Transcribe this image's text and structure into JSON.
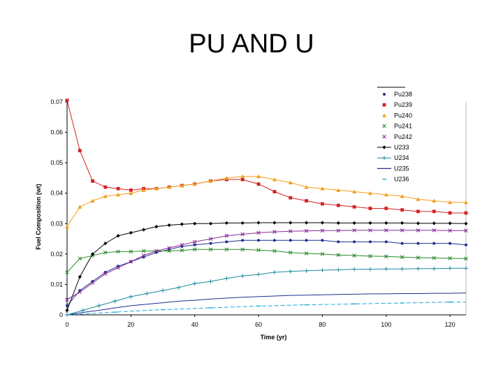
{
  "slide": {
    "title": "PU AND U"
  },
  "chart_data": {
    "type": "line",
    "title": "",
    "xlabel": "Time (yr)",
    "ylabel": "Fuel Composition (wt)",
    "xlim": [
      0,
      125
    ],
    "ylim": [
      0,
      0.07
    ],
    "xticks": [
      "0",
      "20",
      "40",
      "60",
      "80",
      "100",
      "120"
    ],
    "yticks": [
      "0",
      "0.01",
      "0.02",
      "0.03",
      "0.04",
      "0.05",
      "0.06",
      "0.07"
    ],
    "grid": false,
    "legend_position": "top-right",
    "series": [
      {
        "name": "Pu238",
        "color": "#1f2f8f",
        "marker": "circle",
        "x": [
          0,
          4,
          8,
          12,
          16,
          20,
          24,
          28,
          32,
          36,
          40,
          45,
          50,
          55,
          60,
          65,
          70,
          75,
          80,
          85,
          90,
          95,
          100,
          105,
          110,
          115,
          120,
          125
        ],
        "y": [
          0.003,
          0.008,
          0.011,
          0.014,
          0.016,
          0.0175,
          0.019,
          0.0205,
          0.0215,
          0.0225,
          0.023,
          0.0235,
          0.024,
          0.0245,
          0.0245,
          0.0245,
          0.0245,
          0.0245,
          0.0245,
          0.024,
          0.024,
          0.024,
          0.024,
          0.0235,
          0.0235,
          0.0235,
          0.0235,
          0.023
        ]
      },
      {
        "name": "Pu239",
        "color": "#d42020",
        "marker": "square",
        "x": [
          0,
          4,
          8,
          12,
          16,
          20,
          24,
          28,
          32,
          36,
          40,
          45,
          50,
          55,
          60,
          65,
          70,
          75,
          80,
          85,
          90,
          95,
          100,
          105,
          110,
          115,
          120,
          125
        ],
        "y": [
          0.0705,
          0.054,
          0.044,
          0.042,
          0.0415,
          0.041,
          0.0415,
          0.0415,
          0.042,
          0.0425,
          0.043,
          0.044,
          0.0445,
          0.0445,
          0.043,
          0.0405,
          0.0385,
          0.0375,
          0.0365,
          0.036,
          0.0355,
          0.035,
          0.035,
          0.0345,
          0.034,
          0.034,
          0.0335,
          0.0335
        ]
      },
      {
        "name": "Pu240",
        "color": "#f0a020",
        "marker": "triangle",
        "x": [
          0,
          4,
          8,
          12,
          16,
          20,
          24,
          28,
          32,
          36,
          40,
          45,
          50,
          55,
          60,
          65,
          70,
          75,
          80,
          85,
          90,
          95,
          100,
          105,
          110,
          115,
          120,
          125
        ],
        "y": [
          0.029,
          0.0355,
          0.0375,
          0.039,
          0.0395,
          0.04,
          0.041,
          0.0415,
          0.042,
          0.0425,
          0.043,
          0.044,
          0.045,
          0.0455,
          0.0455,
          0.0445,
          0.0435,
          0.042,
          0.0415,
          0.041,
          0.0405,
          0.04,
          0.0395,
          0.039,
          0.038,
          0.0375,
          0.037,
          0.037
        ]
      },
      {
        "name": "Pu241",
        "color": "#2a8a2a",
        "marker": "x",
        "x": [
          0,
          4,
          8,
          12,
          16,
          20,
          24,
          28,
          32,
          36,
          40,
          45,
          50,
          55,
          60,
          65,
          70,
          75,
          80,
          85,
          90,
          95,
          100,
          105,
          110,
          115,
          120,
          125
        ],
        "y": [
          0.014,
          0.0185,
          0.0195,
          0.0205,
          0.0208,
          0.0208,
          0.021,
          0.021,
          0.021,
          0.0212,
          0.0215,
          0.0215,
          0.0215,
          0.0215,
          0.0213,
          0.021,
          0.0205,
          0.0202,
          0.02,
          0.0197,
          0.0195,
          0.0193,
          0.0192,
          0.019,
          0.0188,
          0.0187,
          0.0186,
          0.0185
        ]
      },
      {
        "name": "Pu242",
        "color": "#8a2a9a",
        "marker": "x",
        "x": [
          0,
          4,
          8,
          12,
          16,
          20,
          24,
          28,
          32,
          36,
          40,
          45,
          50,
          55,
          60,
          65,
          70,
          75,
          80,
          85,
          90,
          95,
          100,
          105,
          110,
          115,
          120,
          125
        ],
        "y": [
          0.005,
          0.0075,
          0.0105,
          0.0135,
          0.0155,
          0.0175,
          0.0195,
          0.021,
          0.022,
          0.023,
          0.024,
          0.025,
          0.026,
          0.0265,
          0.027,
          0.0273,
          0.0275,
          0.0276,
          0.0277,
          0.0277,
          0.0278,
          0.0278,
          0.0278,
          0.0278,
          0.0278,
          0.0278,
          0.0277,
          0.0277
        ]
      },
      {
        "name": "U233",
        "color": "#000000",
        "marker": "diamond",
        "x": [
          0,
          4,
          8,
          12,
          16,
          20,
          24,
          28,
          32,
          36,
          40,
          45,
          50,
          55,
          60,
          65,
          70,
          75,
          80,
          85,
          90,
          95,
          100,
          105,
          110,
          115,
          120,
          125
        ],
        "y": [
          0.0015,
          0.0125,
          0.02,
          0.0235,
          0.026,
          0.027,
          0.028,
          0.029,
          0.0295,
          0.0298,
          0.03,
          0.03,
          0.0302,
          0.0302,
          0.0303,
          0.0303,
          0.0303,
          0.0303,
          0.0303,
          0.0302,
          0.0302,
          0.0302,
          0.0302,
          0.0302,
          0.0301,
          0.0301,
          0.0301,
          0.03
        ]
      },
      {
        "name": "U234",
        "color": "#1f8a9a",
        "marker": "plus",
        "x": [
          0,
          5,
          10,
          15,
          20,
          25,
          30,
          35,
          40,
          45,
          50,
          55,
          60,
          65,
          70,
          75,
          80,
          85,
          90,
          95,
          100,
          105,
          110,
          115,
          120,
          125
        ],
        "y": [
          0,
          0.0015,
          0.003,
          0.0045,
          0.006,
          0.007,
          0.008,
          0.009,
          0.0103,
          0.011,
          0.012,
          0.0128,
          0.0133,
          0.014,
          0.0143,
          0.0145,
          0.0147,
          0.0148,
          0.015,
          0.015,
          0.0151,
          0.0151,
          0.0152,
          0.0152,
          0.0153,
          0.0153
        ]
      },
      {
        "name": "U235",
        "color": "#1f2f8f",
        "marker": "none",
        "x": [
          0,
          5,
          10,
          15,
          20,
          25,
          30,
          35,
          40,
          45,
          50,
          55,
          60,
          65,
          70,
          75,
          80,
          85,
          90,
          95,
          100,
          105,
          110,
          115,
          120,
          125
        ],
        "y": [
          0,
          0.0008,
          0.0015,
          0.0023,
          0.003,
          0.0035,
          0.004,
          0.0045,
          0.0048,
          0.0052,
          0.0055,
          0.0058,
          0.006,
          0.0062,
          0.0064,
          0.0065,
          0.0066,
          0.0067,
          0.0068,
          0.0069,
          0.0069,
          0.007,
          0.007,
          0.0071,
          0.0071,
          0.0072
        ]
      },
      {
        "name": "U236",
        "color": "#20a8d8",
        "marker": "dash",
        "x": [
          0,
          5,
          10,
          15,
          20,
          25,
          30,
          35,
          40,
          45,
          50,
          55,
          60,
          65,
          70,
          75,
          80,
          85,
          90,
          95,
          100,
          105,
          110,
          115,
          120,
          125
        ],
        "y": [
          0,
          0.0003,
          0.0006,
          0.0009,
          0.0012,
          0.0015,
          0.0017,
          0.0019,
          0.0021,
          0.0023,
          0.0025,
          0.0027,
          0.0029,
          0.003,
          0.0032,
          0.0033,
          0.0034,
          0.0035,
          0.0036,
          0.0037,
          0.0038,
          0.0039,
          0.004,
          0.0041,
          0.0042,
          0.0042
        ]
      }
    ]
  }
}
